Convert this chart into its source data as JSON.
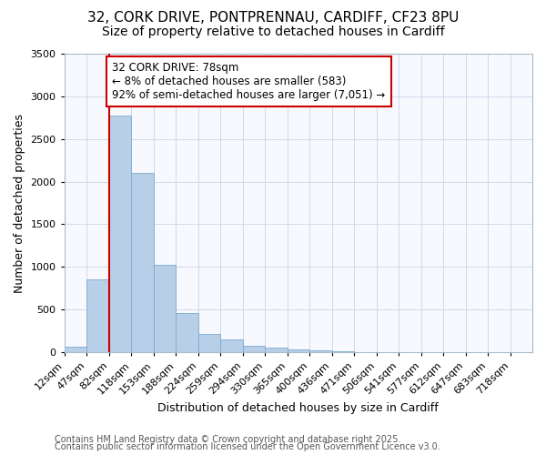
{
  "title_line1": "32, CORK DRIVE, PONTPRENNAU, CARDIFF, CF23 8PU",
  "title_line2": "Size of property relative to detached houses in Cardiff",
  "xlabel": "Distribution of detached houses by size in Cardiff",
  "ylabel": "Number of detached properties",
  "background_color": "#ffffff",
  "plot_bg_color": "#f8f9ff",
  "bar_color": "#b8cfe8",
  "bar_edge_color": "#7aaad0",
  "bin_labels": [
    "12sqm",
    "47sqm",
    "82sqm",
    "118sqm",
    "153sqm",
    "188sqm",
    "224sqm",
    "259sqm",
    "294sqm",
    "330sqm",
    "365sqm",
    "400sqm",
    "436sqm",
    "471sqm",
    "506sqm",
    "541sqm",
    "577sqm",
    "612sqm",
    "647sqm",
    "683sqm",
    "718sqm"
  ],
  "bar_heights": [
    60,
    850,
    2775,
    2100,
    1030,
    460,
    210,
    150,
    75,
    50,
    35,
    20,
    10,
    5,
    2,
    1,
    0,
    0,
    0,
    0,
    0
  ],
  "vline_x": 2,
  "vline_color": "#cc0000",
  "annotation_text": "32 CORK DRIVE: 78sqm\n← 8% of detached houses are smaller (583)\n92% of semi-detached houses are larger (7,051) →",
  "annotation_box_color": "#ffffff",
  "annotation_box_edge": "#cc0000",
  "ylim": [
    0,
    3500
  ],
  "yticks": [
    0,
    500,
    1000,
    1500,
    2000,
    2500,
    3000,
    3500
  ],
  "footer_line1": "Contains HM Land Registry data © Crown copyright and database right 2025.",
  "footer_line2": "Contains public sector information licensed under the Open Government Licence v3.0.",
  "grid_color": "#d0d8ea",
  "title_fontsize": 11,
  "subtitle_fontsize": 10,
  "axis_label_fontsize": 9,
  "tick_fontsize": 8,
  "annotation_fontsize": 8.5,
  "footer_fontsize": 7
}
